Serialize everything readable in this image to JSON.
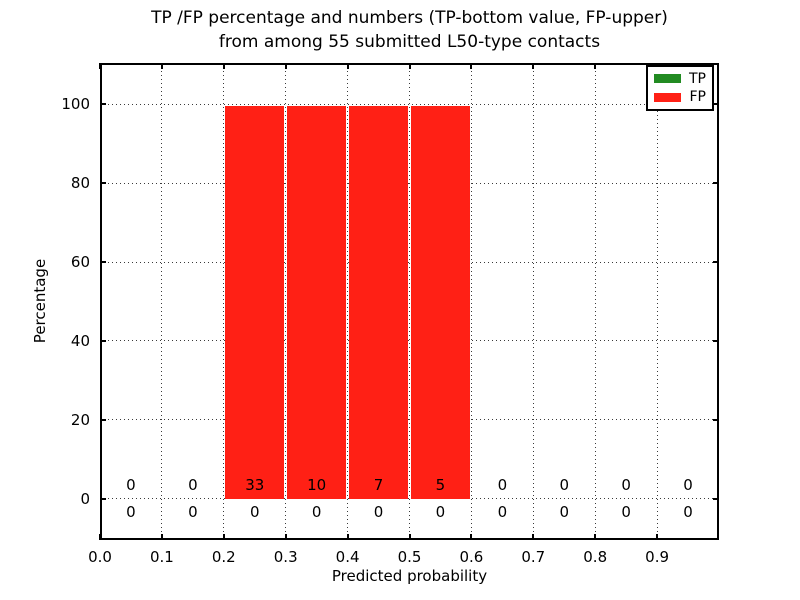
{
  "figure": {
    "title_line1": "TP /FP percentage and numbers (TP-bottom value, FP-upper)",
    "title_line2": "from among 55 submitted L50-type contacts",
    "xlabel": "Predicted probability",
    "ylabel": "Percentage",
    "background_color": "#ffffff",
    "text_color": "#000000"
  },
  "legend": {
    "position": "upper right",
    "items": [
      {
        "label": "TP",
        "color": "#228b22"
      },
      {
        "label": "FP",
        "color": "#ff2015"
      }
    ]
  },
  "chart_data": {
    "type": "bar",
    "stacked": true,
    "title": "TP /FP percentage and numbers (TP-bottom value, FP-upper) from among 55 submitted L50-type contacts",
    "xlabel": "Predicted probability",
    "ylabel": "Percentage",
    "total_submitted_contacts": 55,
    "contact_type": "L50",
    "xlim": [
      0.0,
      1.0
    ],
    "ylim": [
      -10.4,
      110.4
    ],
    "grid": true,
    "grid_style": "dotted",
    "x_tick_values": [
      0.0,
      0.1,
      0.2,
      0.3,
      0.4,
      0.5,
      0.6,
      0.7,
      0.8,
      0.9
    ],
    "x_tick_labels": [
      "0.0",
      "0.1",
      "0.2",
      "0.3",
      "0.4",
      "0.5",
      "0.6",
      "0.7",
      "0.8",
      "0.9"
    ],
    "y_tick_values": [
      0,
      20,
      40,
      60,
      80,
      100
    ],
    "y_tick_labels": [
      "0",
      "20",
      "40",
      "60",
      "80",
      "100"
    ],
    "bin_edges": [
      0.0,
      0.1,
      0.2,
      0.3,
      0.4,
      0.5,
      0.6,
      0.7,
      0.8,
      0.9,
      1.0
    ],
    "series": [
      {
        "name": "TP",
        "color": "#228b22",
        "percent": [
          0,
          0,
          0,
          0,
          0,
          0,
          0,
          0,
          0,
          0
        ],
        "counts": [
          0,
          0,
          0,
          0,
          0,
          0,
          0,
          0,
          0,
          0
        ],
        "count_label_row": "bottom"
      },
      {
        "name": "FP",
        "color": "#ff2015",
        "percent": [
          0,
          0,
          100,
          100,
          100,
          100,
          0,
          0,
          0,
          0
        ],
        "counts": [
          0,
          0,
          33,
          10,
          7,
          5,
          0,
          0,
          0,
          0
        ],
        "count_label_row": "top"
      }
    ]
  }
}
